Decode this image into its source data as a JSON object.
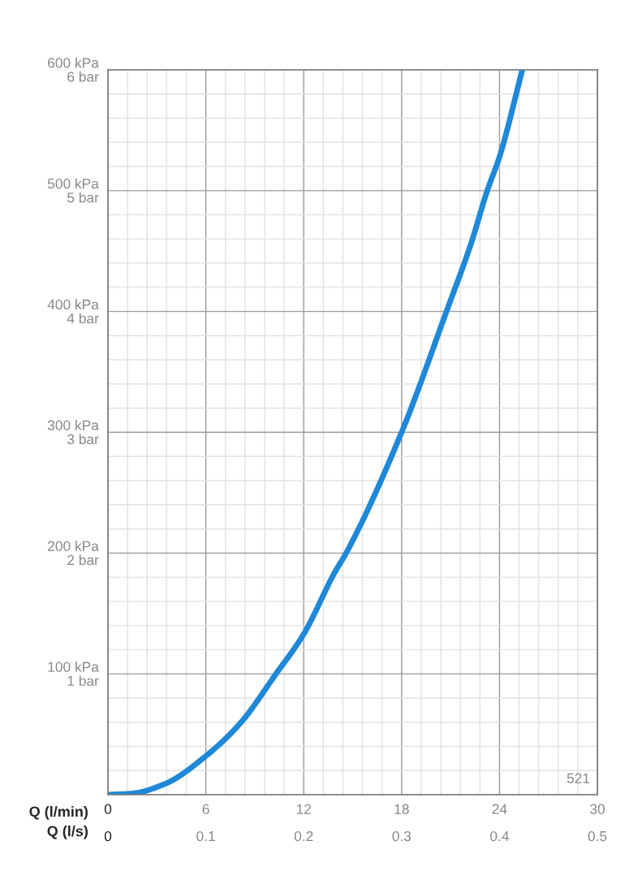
{
  "chart_data": {
    "type": "line",
    "xlabel": "Q (l/min)",
    "x2label": "Q (l/s)",
    "x": [
      0,
      1.5,
      3.5,
      6,
      8.1,
      10.3,
      12,
      13.9,
      14.6,
      18,
      20.75,
      22.25,
      23.25,
      24,
      25.4
    ],
    "series": [
      {
        "color": "#1f88d8",
        "values": [
          0,
          1,
          9,
          32,
          59,
          100,
          133,
          184,
          200,
          300,
          400,
          456,
          500,
          528,
          600
        ]
      }
    ],
    "xlim": [
      0,
      30
    ],
    "xticks": [
      0,
      6,
      12,
      18,
      24,
      30
    ],
    "x2lim": [
      0,
      0.5
    ],
    "x2ticks": [
      0,
      0.1,
      0.2,
      0.3,
      0.4,
      0.5
    ],
    "ylim": [
      0,
      600
    ],
    "yticks": [
      {
        "value": 0,
        "label": null
      },
      {
        "value": 100,
        "label": "100 kPa"
      },
      {
        "value": 200,
        "label": "200 kPa"
      },
      {
        "value": 300,
        "label": "300 kPa"
      },
      {
        "value": 400,
        "label": "400 kPa"
      },
      {
        "value": 500,
        "label": "500 kPa"
      },
      {
        "value": 600,
        "label": "600 kPa"
      }
    ],
    "y2lim": [
      0,
      6
    ],
    "y2ticks": [
      {
        "value": 0,
        "label": null
      },
      {
        "value": 1,
        "label": "1 bar"
      },
      {
        "value": 2,
        "label": "2 bar"
      },
      {
        "value": 3,
        "label": "3 bar"
      },
      {
        "value": 4,
        "label": "4 bar"
      },
      {
        "value": 5,
        "label": "5 bar"
      },
      {
        "value": 6,
        "label": "6 bar"
      }
    ],
    "grid": true,
    "marker": "none",
    "line_style": "solid",
    "annotations": [
      "521"
    ]
  }
}
